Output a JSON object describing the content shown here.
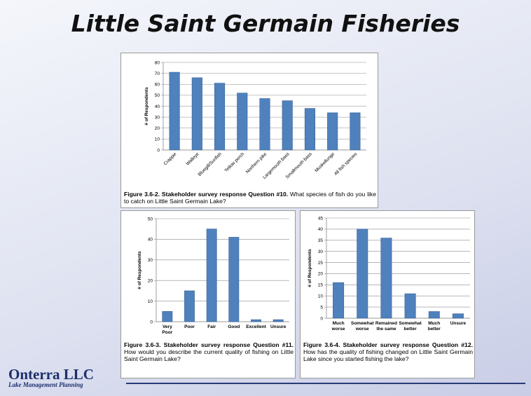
{
  "title": "Little Saint Germain Fisheries",
  "logo": {
    "name": "Onterra LLC",
    "tagline": "Lake Management Planning"
  },
  "chart_data": [
    {
      "type": "bar",
      "ylabel": "# of Respondents",
      "color": "#4f81bd",
      "grid": true,
      "categories": [
        "Crappie",
        "Walleye",
        "Bluegill/Sunfish",
        "Yellow perch",
        "Northern pike",
        "Largemouth bass",
        "Smallmouth bass",
        "Muskellunge",
        "All fish species"
      ],
      "values": [
        71,
        66,
        61,
        52,
        47,
        45,
        38,
        34,
        34
      ],
      "ylim": [
        0,
        80
      ],
      "yticks": [
        0,
        10,
        20,
        30,
        40,
        50,
        60,
        70,
        80
      ],
      "caption": {
        "label": "Figure 3.6-2. Stakeholder survey response Question #10.",
        "text": "What species of fish do you like to catch on Little Saint Germain Lake?"
      }
    },
    {
      "type": "bar",
      "ylabel": "# of Respondents",
      "color": "#4f81bd",
      "grid": true,
      "categories": [
        "Very Poor",
        "Poor",
        "Fair",
        "Good",
        "Excellent",
        "Unsure"
      ],
      "values": [
        5,
        15,
        45,
        41,
        1,
        1
      ],
      "ylim": [
        0,
        50
      ],
      "yticks": [
        0,
        10,
        20,
        30,
        40,
        50
      ],
      "caption": {
        "label": "Figure 3.6-3. Stakeholder survey response Question #11.",
        "text": "How would you describe the current quality of fishing on Little Saint Germain Lake?"
      }
    },
    {
      "type": "bar",
      "ylabel": "# of Respondents",
      "color": "#4f81bd",
      "grid": true,
      "categories": [
        "Much worse",
        "Somewhat worse",
        "Remained the same",
        "Somewhat better",
        "Much better",
        "Unsure"
      ],
      "values": [
        16,
        40,
        36,
        11,
        3,
        2
      ],
      "ylim": [
        0,
        45
      ],
      "yticks": [
        0,
        5,
        10,
        15,
        20,
        25,
        30,
        35,
        40,
        45
      ],
      "caption": {
        "label": "Figure 3.6-4. Stakeholder survey response Question #12.",
        "text": "How has the quality of fishing changed on Little Saint Germain Lake since you started fishing the lake?"
      }
    }
  ]
}
